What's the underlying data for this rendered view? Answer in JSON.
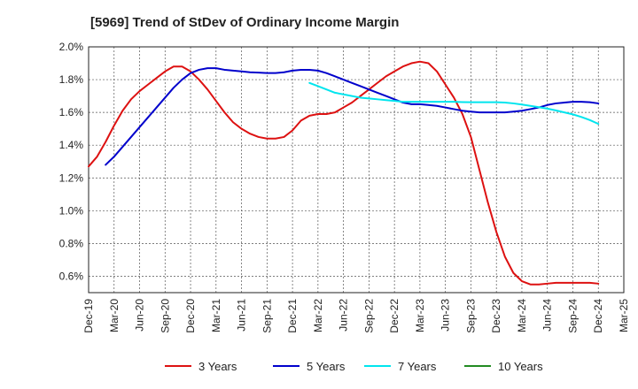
{
  "chart_data": {
    "type": "line",
    "title": "[5969]  Trend of StDev of Ordinary Income Margin",
    "xlabel": "",
    "ylabel": "",
    "ylim": [
      0.5,
      2.0
    ],
    "y_ticks": [
      0.6,
      0.8,
      1.0,
      1.2,
      1.4,
      1.6,
      1.8,
      2.0
    ],
    "y_tick_labels": [
      "0.6%",
      "0.8%",
      "1.0%",
      "1.2%",
      "1.4%",
      "1.6%",
      "1.8%",
      "2.0%"
    ],
    "x_tick_labels": [
      "Dec-19",
      "Mar-20",
      "Jun-20",
      "Sep-20",
      "Dec-20",
      "Mar-21",
      "Jun-21",
      "Sep-21",
      "Dec-21",
      "Mar-22",
      "Jun-22",
      "Sep-22",
      "Dec-22",
      "Mar-23",
      "Jun-23",
      "Sep-23",
      "Dec-23",
      "Mar-24",
      "Jun-24",
      "Sep-24",
      "Dec-24",
      "Mar-25"
    ],
    "grid": true,
    "legend_position": "bottom",
    "series": [
      {
        "name": "3 Years",
        "color": "#dd1111",
        "points": [
          [
            "Dec-19",
            1.27
          ],
          [
            "Jan-20",
            1.33
          ],
          [
            "Feb-20",
            1.42
          ],
          [
            "Mar-20",
            1.52
          ],
          [
            "Apr-20",
            1.61
          ],
          [
            "May-20",
            1.68
          ],
          [
            "Jun-20",
            1.73
          ],
          [
            "Jul-20",
            1.77
          ],
          [
            "Aug-20",
            1.81
          ],
          [
            "Sep-20",
            1.85
          ],
          [
            "Oct-20",
            1.88
          ],
          [
            "Nov-20",
            1.88
          ],
          [
            "Dec-20",
            1.85
          ],
          [
            "Jan-21",
            1.8
          ],
          [
            "Feb-21",
            1.74
          ],
          [
            "Mar-21",
            1.67
          ],
          [
            "Apr-21",
            1.6
          ],
          [
            "May-21",
            1.54
          ],
          [
            "Jun-21",
            1.5
          ],
          [
            "Jul-21",
            1.47
          ],
          [
            "Aug-21",
            1.45
          ],
          [
            "Sep-21",
            1.44
          ],
          [
            "Oct-21",
            1.44
          ],
          [
            "Nov-21",
            1.45
          ],
          [
            "Dec-21",
            1.49
          ],
          [
            "Jan-22",
            1.55
          ],
          [
            "Feb-22",
            1.58
          ],
          [
            "Mar-22",
            1.59
          ],
          [
            "Apr-22",
            1.59
          ],
          [
            "May-22",
            1.6
          ],
          [
            "Jun-22",
            1.63
          ],
          [
            "Jul-22",
            1.66
          ],
          [
            "Aug-22",
            1.7
          ],
          [
            "Sep-22",
            1.74
          ],
          [
            "Oct-22",
            1.78
          ],
          [
            "Nov-22",
            1.82
          ],
          [
            "Dec-22",
            1.85
          ],
          [
            "Jan-23",
            1.88
          ],
          [
            "Feb-23",
            1.9
          ],
          [
            "Mar-23",
            1.91
          ],
          [
            "Apr-23",
            1.9
          ],
          [
            "May-23",
            1.85
          ],
          [
            "Jun-23",
            1.77
          ],
          [
            "Jul-23",
            1.69
          ],
          [
            "Aug-23",
            1.59
          ],
          [
            "Sep-23",
            1.45
          ],
          [
            "Oct-23",
            1.25
          ],
          [
            "Nov-23",
            1.05
          ],
          [
            "Dec-23",
            0.87
          ],
          [
            "Jan-24",
            0.72
          ],
          [
            "Feb-24",
            0.62
          ],
          [
            "Mar-24",
            0.57
          ],
          [
            "Apr-24",
            0.55
          ],
          [
            "May-24",
            0.55
          ],
          [
            "Jun-24",
            0.555
          ],
          [
            "Jul-24",
            0.56
          ],
          [
            "Aug-24",
            0.56
          ],
          [
            "Sep-24",
            0.56
          ],
          [
            "Oct-24",
            0.56
          ],
          [
            "Nov-24",
            0.56
          ],
          [
            "Dec-24",
            0.555
          ]
        ]
      },
      {
        "name": "5 Years",
        "color": "#0000cc",
        "points": [
          [
            "Feb-20",
            1.28
          ],
          [
            "Mar-20",
            1.33
          ],
          [
            "Apr-20",
            1.39
          ],
          [
            "May-20",
            1.45
          ],
          [
            "Jun-20",
            1.51
          ],
          [
            "Jul-20",
            1.57
          ],
          [
            "Aug-20",
            1.63
          ],
          [
            "Sep-20",
            1.69
          ],
          [
            "Oct-20",
            1.75
          ],
          [
            "Nov-20",
            1.8
          ],
          [
            "Dec-20",
            1.84
          ],
          [
            "Jan-21",
            1.86
          ],
          [
            "Feb-21",
            1.87
          ],
          [
            "Mar-21",
            1.87
          ],
          [
            "Apr-21",
            1.86
          ],
          [
            "May-21",
            1.855
          ],
          [
            "Jun-21",
            1.85
          ],
          [
            "Jul-21",
            1.845
          ],
          [
            "Aug-21",
            1.843
          ],
          [
            "Sep-21",
            1.84
          ],
          [
            "Oct-21",
            1.84
          ],
          [
            "Nov-21",
            1.845
          ],
          [
            "Dec-21",
            1.855
          ],
          [
            "Jan-22",
            1.86
          ],
          [
            "Feb-22",
            1.86
          ],
          [
            "Mar-22",
            1.855
          ],
          [
            "Apr-22",
            1.84
          ],
          [
            "May-22",
            1.82
          ],
          [
            "Jun-22",
            1.8
          ],
          [
            "Jul-22",
            1.78
          ],
          [
            "Aug-22",
            1.76
          ],
          [
            "Sep-22",
            1.74
          ],
          [
            "Oct-22",
            1.72
          ],
          [
            "Nov-22",
            1.7
          ],
          [
            "Dec-22",
            1.68
          ],
          [
            "Jan-23",
            1.66
          ],
          [
            "Feb-23",
            1.65
          ],
          [
            "Mar-23",
            1.65
          ],
          [
            "Apr-23",
            1.645
          ],
          [
            "May-23",
            1.64
          ],
          [
            "Jun-23",
            1.63
          ],
          [
            "Jul-23",
            1.62
          ],
          [
            "Aug-23",
            1.61
          ],
          [
            "Sep-23",
            1.605
          ],
          [
            "Oct-23",
            1.6
          ],
          [
            "Nov-23",
            1.6
          ],
          [
            "Dec-23",
            1.6
          ],
          [
            "Jan-24",
            1.6
          ],
          [
            "Feb-24",
            1.605
          ],
          [
            "Mar-24",
            1.61
          ],
          [
            "Apr-24",
            1.62
          ],
          [
            "May-24",
            1.63
          ],
          [
            "Jun-24",
            1.645
          ],
          [
            "Jul-24",
            1.655
          ],
          [
            "Aug-24",
            1.66
          ],
          [
            "Sep-24",
            1.665
          ],
          [
            "Oct-24",
            1.665
          ],
          [
            "Nov-24",
            1.662
          ],
          [
            "Dec-24",
            1.655
          ]
        ]
      },
      {
        "name": "7 Years",
        "color": "#00e5ee",
        "points": [
          [
            "Feb-22",
            1.78
          ],
          [
            "Mar-22",
            1.76
          ],
          [
            "Apr-22",
            1.74
          ],
          [
            "May-22",
            1.72
          ],
          [
            "Jun-22",
            1.71
          ],
          [
            "Jul-22",
            1.7
          ],
          [
            "Aug-22",
            1.69
          ],
          [
            "Sep-22",
            1.685
          ],
          [
            "Oct-22",
            1.68
          ],
          [
            "Nov-22",
            1.675
          ],
          [
            "Dec-22",
            1.67
          ],
          [
            "Jan-23",
            1.665
          ],
          [
            "Feb-23",
            1.665
          ],
          [
            "Mar-23",
            1.665
          ],
          [
            "Apr-23",
            1.665
          ],
          [
            "May-23",
            1.665
          ],
          [
            "Jun-23",
            1.665
          ],
          [
            "Jul-23",
            1.665
          ],
          [
            "Aug-23",
            1.663
          ],
          [
            "Sep-23",
            1.662
          ],
          [
            "Oct-23",
            1.662
          ],
          [
            "Nov-23",
            1.662
          ],
          [
            "Dec-23",
            1.662
          ],
          [
            "Jan-24",
            1.66
          ],
          [
            "Feb-24",
            1.655
          ],
          [
            "Mar-24",
            1.648
          ],
          [
            "Apr-24",
            1.64
          ],
          [
            "May-24",
            1.632
          ],
          [
            "Jun-24",
            1.623
          ],
          [
            "Jul-24",
            1.612
          ],
          [
            "Aug-24",
            1.6
          ],
          [
            "Sep-24",
            1.588
          ],
          [
            "Oct-24",
            1.572
          ],
          [
            "Nov-24",
            1.553
          ],
          [
            "Dec-24",
            1.53
          ]
        ]
      },
      {
        "name": "10 Years",
        "color": "#228b22",
        "points": []
      }
    ]
  }
}
